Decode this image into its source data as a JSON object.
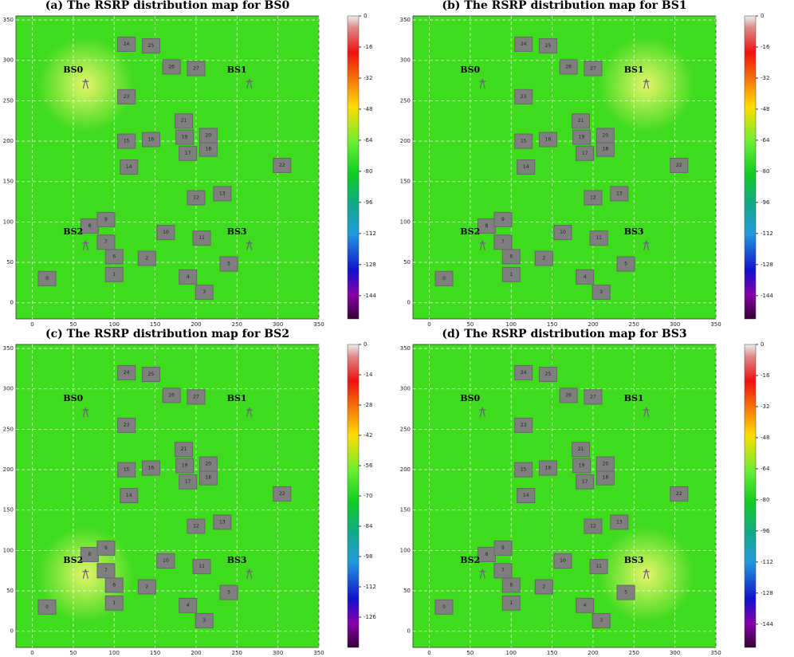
{
  "chart_data": [
    {
      "type": "heatmap",
      "title": "(a) The RSRP distribution map for BS0",
      "serving": 0,
      "xlim": [
        -20,
        350
      ],
      "ylim": [
        -20,
        355
      ],
      "xticks": [
        0,
        50,
        100,
        150,
        200,
        250,
        300,
        350
      ],
      "yticks": [
        0,
        50,
        100,
        150,
        200,
        250,
        300,
        350
      ],
      "clim": [
        -156,
        0
      ],
      "cticks": [
        0,
        -16,
        -32,
        -48,
        -64,
        -80,
        -96,
        -112,
        -128,
        -144
      ],
      "grid": true
    },
    {
      "type": "heatmap",
      "title": "(b) The RSRP distribution map for BS1",
      "serving": 1,
      "xlim": [
        -20,
        350
      ],
      "ylim": [
        -20,
        355
      ],
      "xticks": [
        0,
        50,
        100,
        150,
        200,
        250,
        300,
        350
      ],
      "yticks": [
        0,
        50,
        100,
        150,
        200,
        250,
        300,
        350
      ],
      "clim": [
        -156,
        0
      ],
      "cticks": [
        0,
        -16,
        -32,
        -48,
        -64,
        -80,
        -96,
        -112,
        -128,
        -144
      ],
      "grid": true
    },
    {
      "type": "heatmap",
      "title": "(c) The RSRP distribution map for BS2",
      "serving": 2,
      "xlim": [
        -20,
        350
      ],
      "ylim": [
        -20,
        355
      ],
      "xticks": [
        0,
        50,
        100,
        150,
        200,
        250,
        300,
        350
      ],
      "yticks": [
        0,
        50,
        100,
        150,
        200,
        250,
        300,
        350
      ],
      "clim": [
        -140,
        0
      ],
      "cticks": [
        0,
        -14,
        -28,
        -42,
        -56,
        -70,
        -84,
        -98,
        -112,
        -126
      ],
      "grid": true
    },
    {
      "type": "heatmap",
      "title": "(d) The RSRP distribution map for BS3",
      "serving": 3,
      "xlim": [
        -20,
        350
      ],
      "ylim": [
        -20,
        355
      ],
      "xticks": [
        0,
        50,
        100,
        150,
        200,
        250,
        300,
        350
      ],
      "yticks": [
        0,
        50,
        100,
        150,
        200,
        250,
        300,
        350
      ],
      "clim": [
        -156,
        0
      ],
      "cticks": [
        0,
        -16,
        -32,
        -48,
        -64,
        -80,
        -96,
        -112,
        -128,
        -144
      ],
      "grid": true
    }
  ],
  "stations": [
    {
      "label": "BS0",
      "x": 65,
      "y": 270
    },
    {
      "label": "BS1",
      "x": 265,
      "y": 270
    },
    {
      "label": "BS2",
      "x": 65,
      "y": 70
    },
    {
      "label": "BS3",
      "x": 265,
      "y": 70
    }
  ],
  "buildings": [
    {
      "label": "0",
      "x": 18,
      "y": 30
    },
    {
      "label": "1",
      "x": 100,
      "y": 35
    },
    {
      "label": "2",
      "x": 140,
      "y": 55
    },
    {
      "label": "3",
      "x": 210,
      "y": 13
    },
    {
      "label": "4",
      "x": 190,
      "y": 32
    },
    {
      "label": "5",
      "x": 240,
      "y": 48
    },
    {
      "label": "6",
      "x": 100,
      "y": 57
    },
    {
      "label": "7",
      "x": 90,
      "y": 75
    },
    {
      "label": "8",
      "x": 70,
      "y": 95
    },
    {
      "label": "9",
      "x": 90,
      "y": 103
    },
    {
      "label": "10",
      "x": 163,
      "y": 87
    },
    {
      "label": "11",
      "x": 207,
      "y": 80
    },
    {
      "label": "12",
      "x": 200,
      "y": 130
    },
    {
      "label": "13",
      "x": 232,
      "y": 135
    },
    {
      "label": "14",
      "x": 118,
      "y": 168
    },
    {
      "label": "15",
      "x": 115,
      "y": 200
    },
    {
      "label": "16",
      "x": 145,
      "y": 202
    },
    {
      "label": "17",
      "x": 190,
      "y": 185
    },
    {
      "label": "18",
      "x": 215,
      "y": 190
    },
    {
      "label": "19",
      "x": 186,
      "y": 205
    },
    {
      "label": "20",
      "x": 215,
      "y": 207
    },
    {
      "label": "21",
      "x": 185,
      "y": 225
    },
    {
      "label": "22",
      "x": 305,
      "y": 170
    },
    {
      "label": "23",
      "x": 115,
      "y": 255
    },
    {
      "label": "24",
      "x": 115,
      "y": 320
    },
    {
      "label": "25",
      "x": 145,
      "y": 318
    },
    {
      "label": "26",
      "x": 170,
      "y": 292
    },
    {
      "label": "27",
      "x": 200,
      "y": 290
    }
  ]
}
